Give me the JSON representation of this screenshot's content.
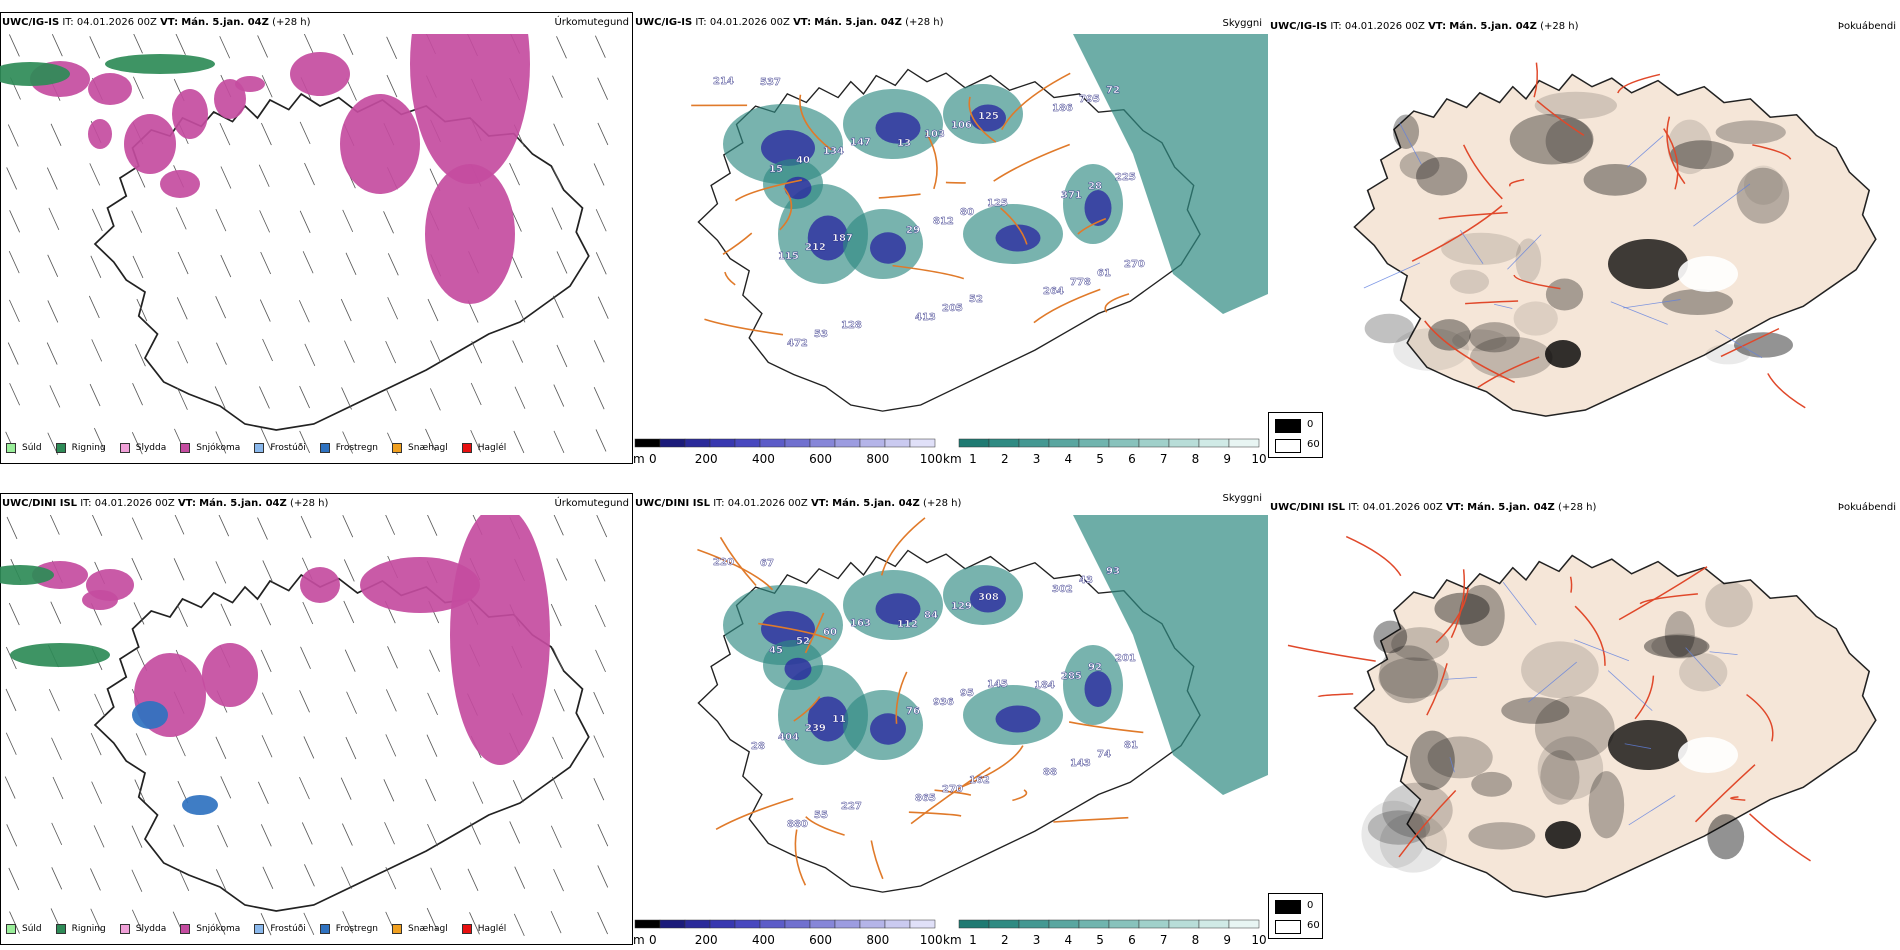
{
  "rows": [
    {
      "model": "UWC/IG-IS",
      "it_label": "IT:",
      "it_value": "04.01.2026 00Z",
      "vt_label": "VT:",
      "vt_value": "Mán. 5.jan. 04Z",
      "lead": "(+28 h)"
    },
    {
      "model": "UWC/DINI ISL",
      "it_label": "IT:",
      "it_value": "04.01.2026 00Z",
      "vt_label": "VT:",
      "vt_value": "Mán. 5.jan. 04Z",
      "lead": "(+28 h)"
    }
  ],
  "panel_titles": {
    "precip": "Úrkomutegund",
    "visibility": "Skyggni",
    "fog": "Þokuábendi"
  },
  "precip_legend": [
    {
      "label": "Súld",
      "color": "#99ee99"
    },
    {
      "label": "Rigning",
      "color": "#2e8b57"
    },
    {
      "label": "Slydda",
      "color": "#f0a0d8"
    },
    {
      "label": "Snjókoma",
      "color": "#c44ca0"
    },
    {
      "label": "Frostúði",
      "color": "#8ab8ec"
    },
    {
      "label": "Frostregn",
      "color": "#2f72c0"
    },
    {
      "label": "Snæhagl",
      "color": "#f0a020"
    },
    {
      "label": "Haglél",
      "color": "#e81010"
    }
  ],
  "colorbar_m": {
    "unit": "m",
    "ticks": [
      "0",
      "200",
      "400",
      "600",
      "800",
      "1000"
    ],
    "colors": [
      "#000000",
      "#1b1b7a",
      "#2a2a9a",
      "#3838b0",
      "#4848bf",
      "#5c5cc8",
      "#7070cf",
      "#8686d8",
      "#9c9ce0",
      "#b4b4e8",
      "#cacaf0",
      "#e0e0f8"
    ]
  },
  "colorbar_km": {
    "unit": "km",
    "ticks": [
      "1",
      "2",
      "3",
      "4",
      "5",
      "6",
      "7",
      "8",
      "9",
      "10"
    ],
    "colors": [
      "#1f7a72",
      "#2f8a82",
      "#449892",
      "#5aa6a0",
      "#70b4ae",
      "#88c2bc",
      "#a0d0ca",
      "#b8ddd8",
      "#d0eae6",
      "#e8f5f3"
    ]
  },
  "fog_legend": {
    "max": "0",
    "min": "60"
  },
  "vis_labels_row1": [
    "214",
    "147",
    "125",
    "270",
    "128",
    "125",
    "225",
    "187",
    "52",
    "72",
    "134",
    "80",
    "61",
    "53",
    "106",
    "28",
    "212",
    "205",
    "795",
    "40",
    "812",
    "778",
    "472",
    "103",
    "371",
    "115",
    "413",
    "186",
    "15",
    "29",
    "264",
    "537",
    "13"
  ],
  "vis_labels_row2": [
    "220",
    "163",
    "145",
    "81",
    "227",
    "308",
    "201",
    "11",
    "162",
    "93",
    "60",
    "95",
    "74",
    "55",
    "129",
    "92",
    "239",
    "270",
    "43",
    "52",
    "936",
    "143",
    "880",
    "84",
    "285",
    "404",
    "865",
    "302",
    "45",
    "76",
    "88",
    "67",
    "112",
    "184",
    "28"
  ],
  "colors": {
    "rain": "#2e8b57",
    "snow": "#c44ca0",
    "sleet": "#f0a0d8",
    "freezing_rain": "#2f72c0",
    "vis_teal": "#2f8a82",
    "vis_blue": "#2c2ca0",
    "roads": "#e07a2a",
    "land_fog": "#f5e6d8",
    "fog_roads": "#e0482a",
    "rivers": "#6080e0"
  }
}
